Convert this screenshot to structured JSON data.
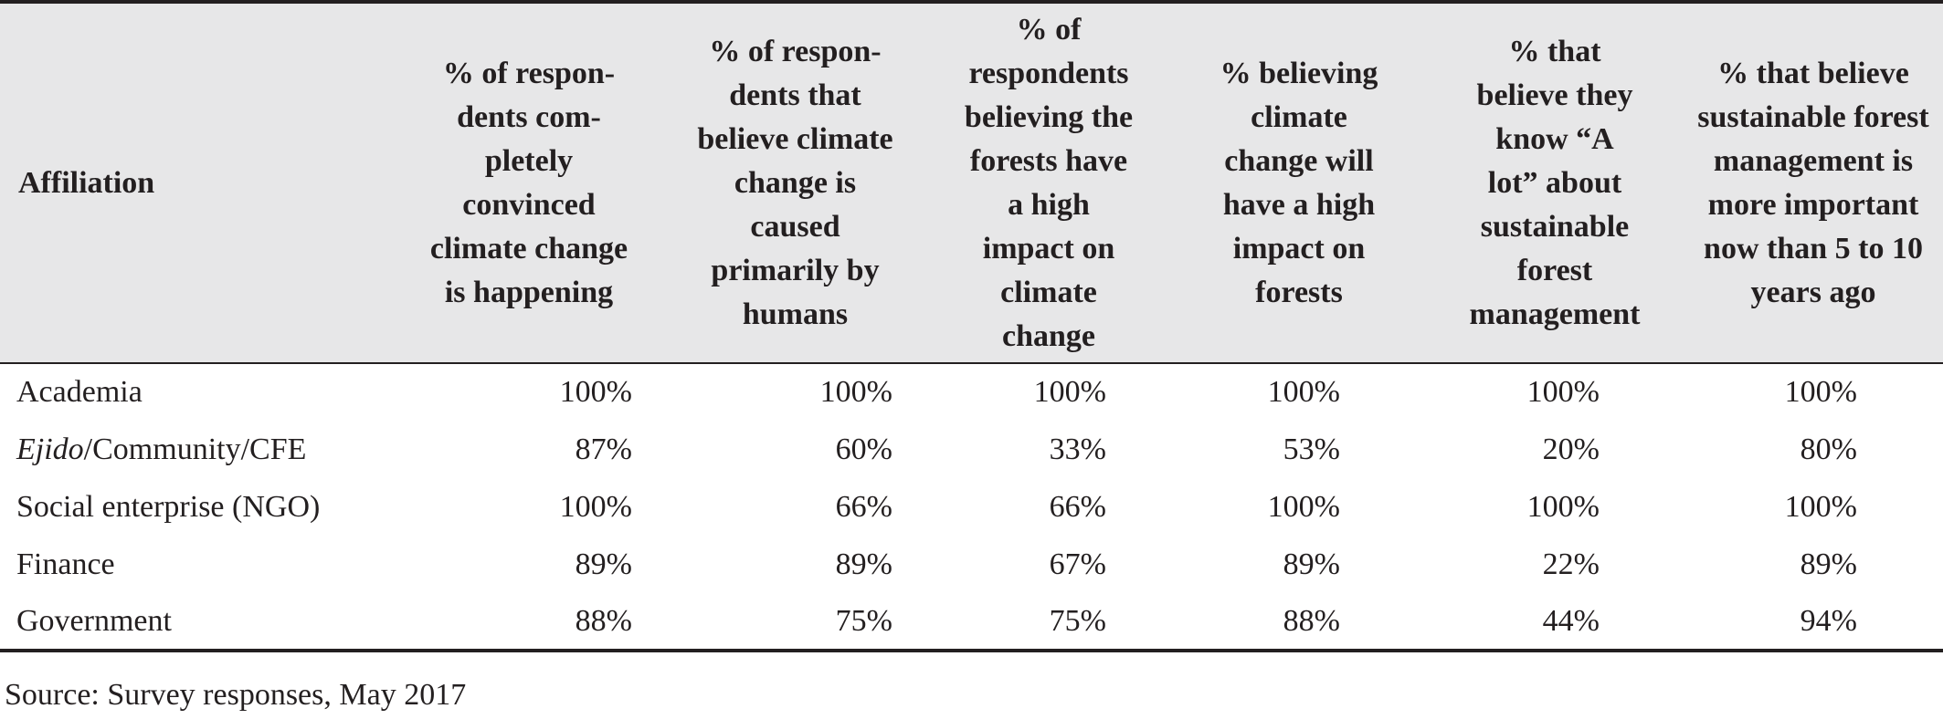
{
  "table": {
    "headers": [
      "Affiliation",
      "% of respon-\ndents com-\npletely\nconvinced\nclimate change\nis happening",
      "% of respon-\ndents that\nbelieve climate\nchange is\ncaused\nprimarily by\nhumans",
      "% of\nrespondents\nbelieving the\nforests have\na high\nimpact on\nclimate\nchange",
      "% believing\nclimate\nchange will\nhave a high\nimpact on\nforests",
      "% that\nbelieve they\nknow “A\nlot” about\nsustainable\nforest\nmanagement",
      "% that believe\nsustainable forest\nmanagement is\nmore important\nnow than 5 to 10\nyears ago"
    ],
    "rows": [
      {
        "affiliation_italic": "",
        "affiliation": "Academia",
        "values": [
          "100%",
          "100%",
          "100%",
          "100%",
          "100%",
          "100%"
        ]
      },
      {
        "affiliation_italic": "Ejido",
        "affiliation": "/Community/CFE",
        "values": [
          "87%",
          "60%",
          "33%",
          "53%",
          "20%",
          "80%"
        ]
      },
      {
        "affiliation_italic": "",
        "affiliation": "Social enterprise (NGO)",
        "values": [
          "100%",
          "66%",
          "66%",
          "100%",
          "100%",
          "100%"
        ]
      },
      {
        "affiliation_italic": "",
        "affiliation": "Finance",
        "values": [
          "89%",
          "89%",
          "67%",
          "89%",
          "22%",
          "89%"
        ]
      },
      {
        "affiliation_italic": "",
        "affiliation": "Government",
        "values": [
          "88%",
          "75%",
          "75%",
          "88%",
          "44%",
          "94%"
        ]
      }
    ]
  },
  "source": "Source: Survey responses, May 2017"
}
